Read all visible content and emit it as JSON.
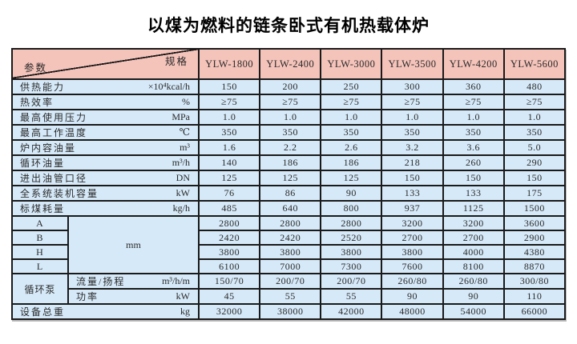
{
  "title": "以煤为燃料的链条卧式有机热载体炉",
  "colors": {
    "header_bg": "#f4c3ba",
    "cell_bg": "#d6e9f8",
    "border": "#1a1a1a"
  },
  "table": {
    "corner": {
      "top_right": "规格",
      "bottom_left": "参数"
    },
    "columns": [
      "YLW-1800",
      "YLW-2400",
      "YLW-3000",
      "YLW-3500",
      "YLW-4200",
      "YLW-5600"
    ],
    "rows": [
      {
        "label": "供热能力",
        "unit": "×10⁴kcal/h",
        "values": [
          "150",
          "200",
          "250",
          "300",
          "360",
          "480"
        ]
      },
      {
        "label": "热效率",
        "unit": "%",
        "values": [
          "≥75",
          "≥75",
          "≥75",
          "≥75",
          "≥75",
          "≥75"
        ]
      },
      {
        "label": "最高使用压力",
        "unit": "MPa",
        "values": [
          "1.0",
          "1.0",
          "1.0",
          "1.0",
          "1.0",
          "1.0"
        ]
      },
      {
        "label": "最高工作温度",
        "unit": "℃",
        "values": [
          "350",
          "350",
          "350",
          "350",
          "350",
          "350"
        ]
      },
      {
        "label": "炉内容油量",
        "unit": "m³",
        "values": [
          "1.6",
          "2.2",
          "2.6",
          "3.2",
          "3.6",
          "5.0"
        ]
      },
      {
        "label": "循环油量",
        "unit": "m³/h",
        "values": [
          "140",
          "186",
          "186",
          "218",
          "260",
          "290"
        ]
      },
      {
        "label": "进出油管口径",
        "unit": "DN",
        "values": [
          "125",
          "125",
          "125",
          "150",
          "150",
          "150"
        ]
      },
      {
        "label": "全系统装机容量",
        "unit": "kW",
        "values": [
          "76",
          "86",
          "90",
          "133",
          "133",
          "175"
        ]
      },
      {
        "label": "标煤耗量",
        "unit": "kg/h",
        "values": [
          "485",
          "640",
          "800",
          "937",
          "1125",
          "1500"
        ]
      }
    ],
    "dimensions": {
      "unit": "mm",
      "rows": [
        {
          "label": "A",
          "values": [
            "2800",
            "2800",
            "2800",
            "3200",
            "3200",
            "3600"
          ]
        },
        {
          "label": "B",
          "values": [
            "2420",
            "2420",
            "2520",
            "2700",
            "2700",
            "2900"
          ]
        },
        {
          "label": "H",
          "values": [
            "3800",
            "3800",
            "3800",
            "3800",
            "4000",
            "4380"
          ]
        },
        {
          "label": "L",
          "values": [
            "6100",
            "7000",
            "7300",
            "7600",
            "8100",
            "8870"
          ]
        }
      ]
    },
    "pump": {
      "label": "循环泵",
      "rows": [
        {
          "label": "流量/扬程",
          "unit": "m³/h/m",
          "values": [
            "150/70",
            "200/70",
            "200/70",
            "260/80",
            "260/80",
            "300/80"
          ]
        },
        {
          "label": "功率",
          "unit": "kW",
          "values": [
            "45",
            "55",
            "55",
            "90",
            "90",
            "110"
          ]
        }
      ]
    },
    "total": {
      "label": "设备总重",
      "unit": "kg",
      "values": [
        "32000",
        "38000",
        "42000",
        "48000",
        "54000",
        "66000"
      ]
    }
  }
}
